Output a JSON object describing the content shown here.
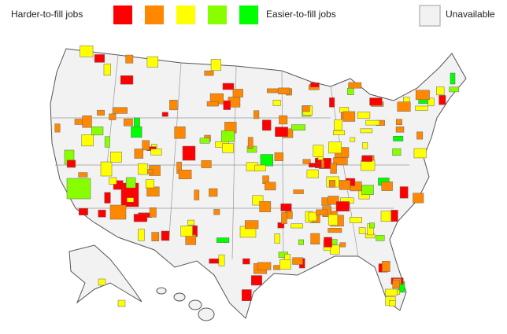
{
  "legend": {
    "harder_label": "Harder-to-fill jobs",
    "easier_label": "Easier-to-fill jobs",
    "unavailable_label": "Unavailable",
    "colors": [
      "#ff0000",
      "#ff8800",
      "#ffff00",
      "#88ff00",
      "#00ff00"
    ],
    "unavailable_color": "#f2f2f2"
  }
}
